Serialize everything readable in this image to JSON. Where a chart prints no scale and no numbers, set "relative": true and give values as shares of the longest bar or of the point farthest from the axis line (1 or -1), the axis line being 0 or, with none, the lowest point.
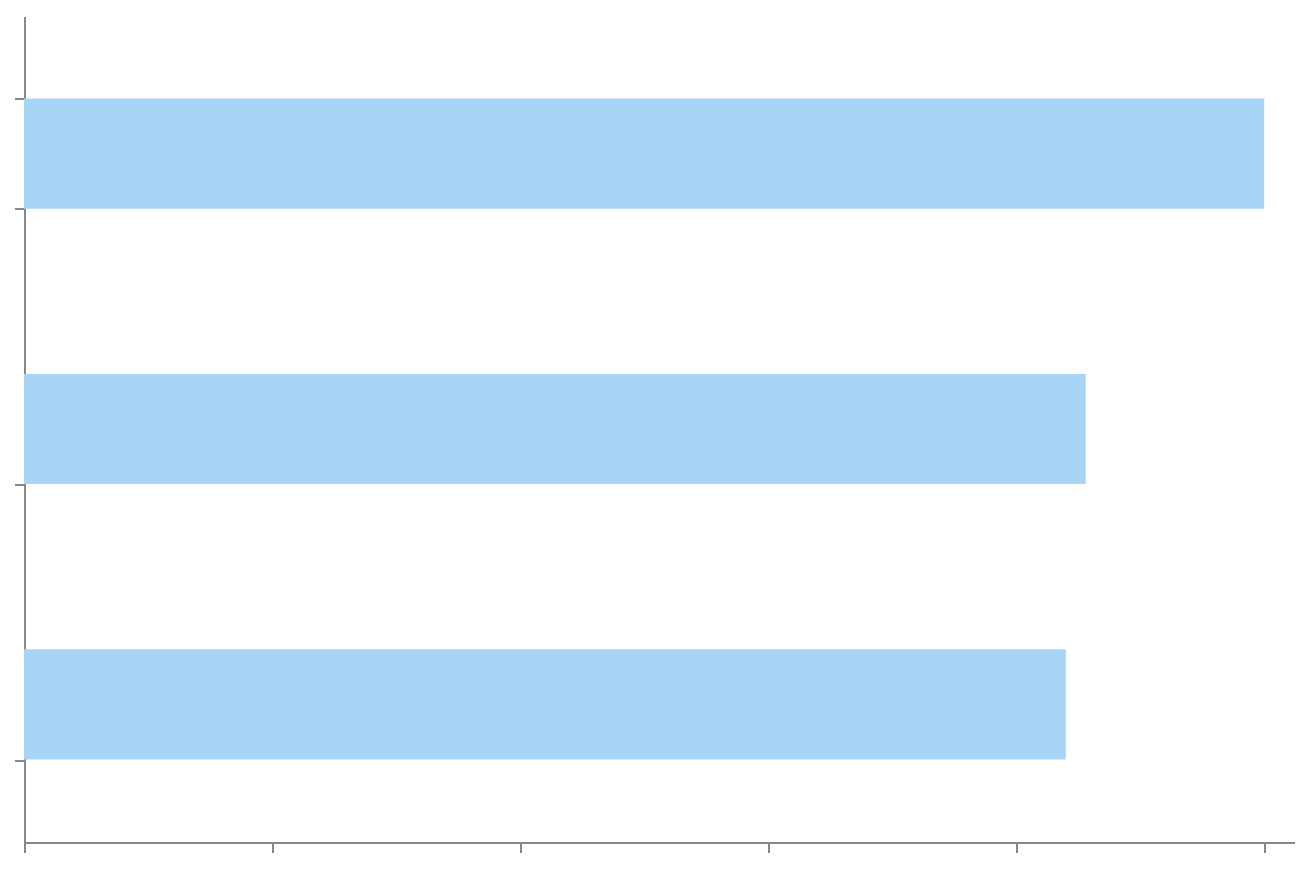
{
  "chart_data": {
    "type": "bar",
    "orientation": "horizontal",
    "relative": true,
    "categories": [
      null,
      null,
      null
    ],
    "values": [
      1,
      0.856,
      0.84
    ],
    "color": "#a8d4f5",
    "grid": false,
    "tick_labels": false
  }
}
